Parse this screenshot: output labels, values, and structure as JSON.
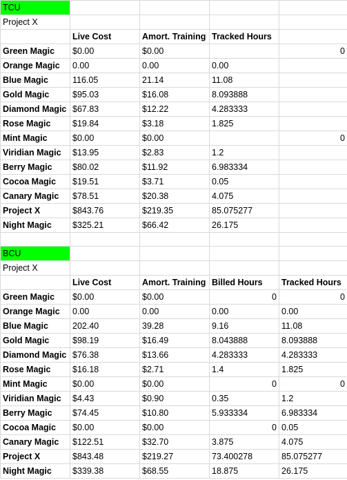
{
  "sections": [
    {
      "title": "TCU",
      "project": "Project X",
      "headers": [
        "",
        "Live Cost",
        "Amort. Training",
        "Tracked Hours",
        ""
      ],
      "rows": [
        [
          "Green Magic",
          "$0.00",
          "$0.00",
          "",
          "0"
        ],
        [
          "Orange Magic",
          "0.00",
          "0.00",
          "0.00",
          ""
        ],
        [
          "Blue Magic",
          "116.05",
          "21.14",
          "11.08",
          ""
        ],
        [
          "Gold Magic",
          "$95.03",
          "$16.08",
          "8.093888",
          ""
        ],
        [
          "Diamond Magic",
          "$67.83",
          "$12.22",
          "4.283333",
          ""
        ],
        [
          "Rose Magic",
          "$19.84",
          "$3.18",
          "1.825",
          ""
        ],
        [
          "Mint Magic",
          "$0.00",
          "$0.00",
          "",
          "0"
        ],
        [
          "Viridian Magic",
          "$13.95",
          "$2.83",
          "1.2",
          ""
        ],
        [
          "Berry Magic",
          "$80.02",
          "$11.92",
          "6.983334",
          ""
        ],
        [
          "Cocoa Magic",
          "$19.51",
          "$3.71",
          "0.05",
          ""
        ],
        [
          "Canary Magic",
          "$78.51",
          "$20.38",
          "4.075",
          ""
        ],
        [
          "Project X",
          "$843.76",
          "$219.35",
          "85.075277",
          ""
        ],
        [
          "Night Magic",
          "$325.21",
          "$66.42",
          "26.175",
          ""
        ]
      ]
    },
    {
      "title": "BCU",
      "project": "Project X",
      "headers": [
        "",
        "Live Cost",
        "Amort. Training",
        "Billed Hours",
        "Tracked Hours"
      ],
      "rows": [
        [
          "Green Magic",
          "$0.00",
          "$0.00",
          "0",
          "0"
        ],
        [
          "Orange Magic",
          "0.00",
          "0.00",
          "0.00",
          "0.00"
        ],
        [
          "Blue Magic",
          "202.40",
          "39.28",
          "9.16",
          "11.08"
        ],
        [
          "Gold Magic",
          "$98.19",
          "$16.49",
          "8.043888",
          "8.093888"
        ],
        [
          "Diamond Magic",
          "$76.38",
          "$13.66",
          "4.283333",
          "4.283333"
        ],
        [
          "Rose Magic",
          "$16.18",
          "$2.71",
          "1.4",
          "1.825"
        ],
        [
          "Mint Magic",
          "$0.00",
          "$0.00",
          "0",
          "0"
        ],
        [
          "Viridian Magic",
          "$4.43",
          "$0.90",
          "0.35",
          "1.2"
        ],
        [
          "Berry Magic",
          "$74.45",
          "$10.80",
          "5.933334",
          "6.983334"
        ],
        [
          "Cocoa Magic",
          "$0.00",
          "$0.00",
          "0",
          "0.05"
        ],
        [
          "Canary Magic",
          "$122.51",
          "$32.70",
          "3.875",
          "4.075"
        ],
        [
          "Project X",
          "$843.48",
          "$219.27",
          "73.400278",
          "85.075277"
        ],
        [
          "Night Magic",
          "$339.38",
          "$68.55",
          "18.875",
          "26.175"
        ]
      ]
    }
  ],
  "colors": {
    "section_highlight": "#00ff00",
    "gridline": "#d9d9d9"
  }
}
